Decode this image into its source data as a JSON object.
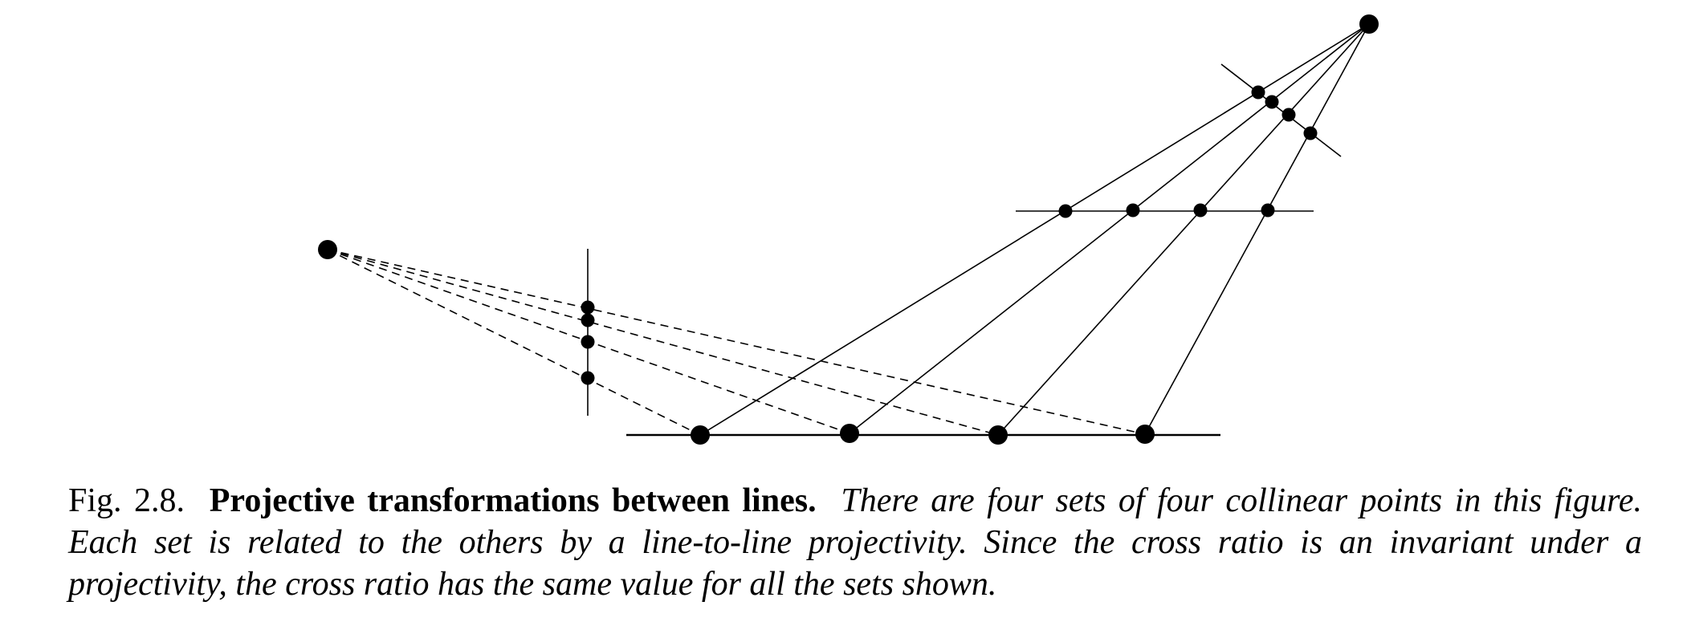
{
  "figure": {
    "description_visible": false
  },
  "caption": {
    "number": "Fig. 2.8.",
    "title": "Projective transformations between lines.",
    "text": "There are four sets of four collinear points in this figure. Each set is related to the others by a line-to-line projectivity. Since the cross ratio is an invariant under a projectivity, the cross ratio has the same value for all the sets shown."
  }
}
